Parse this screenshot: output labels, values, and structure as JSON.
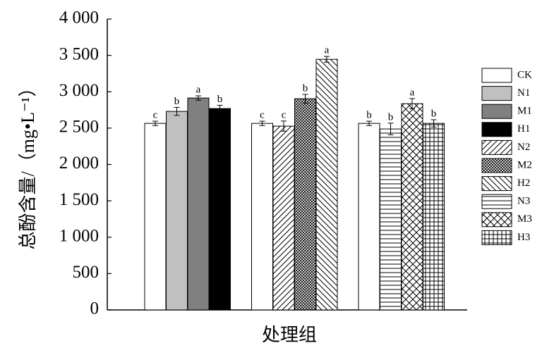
{
  "chart_data": {
    "type": "bar",
    "y_label": "总酚含量/（mg•L⁻¹）",
    "x_label": "处理组",
    "categories": [
      null,
      null,
      null
    ],
    "ylim": [
      0,
      4000
    ],
    "yticks": [
      0,
      500,
      {
        "value": 1000,
        "label": "1 000"
      },
      {
        "value": 1500,
        "label": "1 500"
      },
      {
        "value": 2000,
        "label": "2 000"
      },
      {
        "value": 2500,
        "label": "2 500"
      },
      {
        "value": 3000,
        "label": "3 000"
      },
      {
        "value": 3500,
        "label": "3 500"
      },
      {
        "value": 4000,
        "label": "4 000"
      }
    ],
    "series": [
      {
        "name": "CK",
        "color": "#ffffff",
        "pattern": "solid",
        "values": [
          2565,
          2565,
          2565
        ],
        "errors": [
          30,
          30,
          30
        ],
        "letters": [
          "c",
          "c",
          "b"
        ]
      },
      {
        "name": "N1",
        "color": "#c0c0c0",
        "pattern": "solid",
        "values": [
          2730,
          null,
          null
        ],
        "errors": [
          55,
          null,
          null
        ],
        "letters": [
          "b",
          null,
          null
        ]
      },
      {
        "name": "M1",
        "color": "#808080",
        "pattern": "solid",
        "values": [
          2914,
          null,
          null
        ],
        "errors": [
          30,
          null,
          null
        ],
        "letters": [
          "a",
          null,
          null
        ]
      },
      {
        "name": "H1",
        "color": "#000000",
        "pattern": "solid",
        "values": [
          2769,
          null,
          null
        ],
        "errors": [
          45,
          null,
          null
        ],
        "letters": [
          "b",
          null,
          null
        ]
      },
      {
        "name": "N2",
        "color": "#000000",
        "pattern": "forward-diagonal",
        "values": [
          null,
          2527,
          null
        ],
        "errors": [
          null,
          70,
          null
        ],
        "letters": [
          null,
          "c",
          null
        ]
      },
      {
        "name": "M2",
        "color": "#000000",
        "pattern": "dense-cross",
        "values": [
          null,
          2904,
          null
        ],
        "errors": [
          null,
          60,
          null
        ],
        "letters": [
          null,
          "b",
          null
        ]
      },
      {
        "name": "H2",
        "color": "#000000",
        "pattern": "backward-diagonal",
        "values": [
          null,
          3446,
          null
        ],
        "errors": [
          null,
          40,
          null
        ],
        "letters": [
          null,
          "a",
          null
        ]
      },
      {
        "name": "N3",
        "color": "#000000",
        "pattern": "horizontal",
        "values": [
          null,
          null,
          2488
        ],
        "errors": [
          null,
          null,
          80
        ],
        "letters": [
          null,
          null,
          "b"
        ]
      },
      {
        "name": "M3",
        "color": "#000000",
        "pattern": "diagonal-cross",
        "values": [
          null,
          null,
          2836
        ],
        "errors": [
          null,
          null,
          70
        ],
        "letters": [
          null,
          null,
          "a"
        ]
      },
      {
        "name": "H3",
        "color": "#000000",
        "pattern": "grid",
        "values": [
          null,
          null,
          2565
        ],
        "errors": [
          null,
          null,
          50
        ],
        "letters": [
          null,
          null,
          "b"
        ]
      }
    ]
  }
}
